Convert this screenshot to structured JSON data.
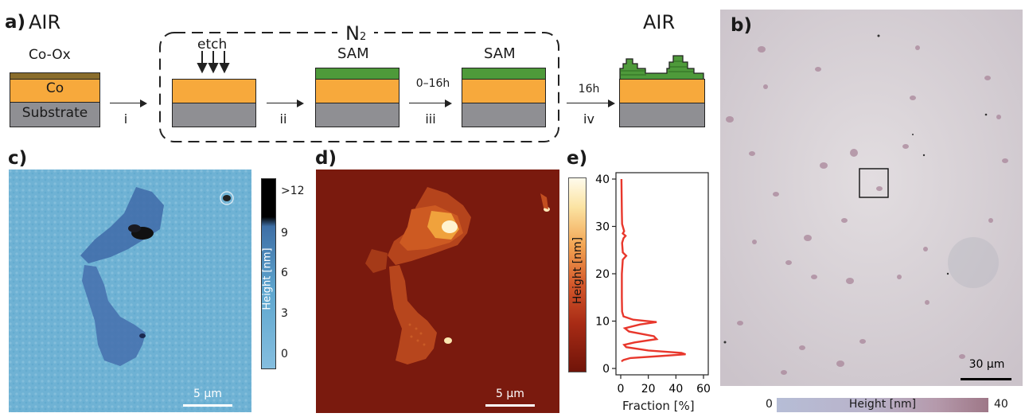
{
  "panel_a": {
    "label": "a)",
    "air_left": "AIR",
    "air_right": "AIR",
    "n2_label": "N",
    "n2_sub": "2",
    "layers_start": {
      "oxide": "Co-Ox",
      "co": "Co",
      "substrate": "Substrate"
    },
    "etch_label": "etch",
    "sam_label": "SAM",
    "steps": {
      "i": "i",
      "ii": "ii",
      "iii": "iii",
      "iii_time": "0–16h",
      "iv": "iv",
      "iv_time": "16h"
    },
    "colors": {
      "cobalt": "#f7a93c",
      "substrate": "#8f8f93",
      "oxide": "#8a6d2c",
      "sam": "#4e9a3a"
    }
  },
  "panel_b": {
    "label": "b)",
    "scale_label": "30 µm",
    "colorbar_min": "0",
    "colorbar_max": "40",
    "colorbar_label": "Height [nm]"
  },
  "panel_c": {
    "label": "c)",
    "scale_label": "5 µm",
    "colorbar_label": "Height [nm]",
    "colorbar_ticks": [
      ">12",
      "9",
      "6",
      "3",
      "0"
    ]
  },
  "panel_d": {
    "label": "d)",
    "scale_label": "5 µm"
  },
  "panel_e": {
    "label": "e)",
    "colorbar_label": "Height [nm]",
    "chart_data": {
      "type": "line",
      "xlabel": "Fraction [%]",
      "ylabel": "Height [nm]",
      "xlim": [
        0,
        60
      ],
      "ylim": [
        0,
        40
      ],
      "x_ticks": [
        "0",
        "20",
        "40",
        "60"
      ],
      "y_ticks": [
        "0",
        "10",
        "20",
        "30",
        "40"
      ],
      "series": [
        {
          "color": "#e8372c",
          "points": [
            [
              0.5,
              40
            ],
            [
              0.8,
              33
            ],
            [
              1,
              30.5
            ],
            [
              2.5,
              29
            ],
            [
              1.5,
              28.5
            ],
            [
              3.5,
              28
            ],
            [
              2,
              27.5
            ],
            [
              1,
              26.5
            ],
            [
              1.5,
              24.5
            ],
            [
              4,
              23.8
            ],
            [
              1.5,
              23
            ],
            [
              0.8,
              20
            ],
            [
              0.8,
              15
            ],
            [
              1,
              12
            ],
            [
              2,
              11
            ],
            [
              9,
              10.3
            ],
            [
              26,
              9.8
            ],
            [
              14,
              9.3
            ],
            [
              3,
              8.5
            ],
            [
              6,
              7.8
            ],
            [
              24,
              6.8
            ],
            [
              26,
              6.2
            ],
            [
              10,
              5.5
            ],
            [
              2.5,
              5
            ],
            [
              4,
              4.5
            ],
            [
              20,
              3.8
            ],
            [
              44,
              3.3
            ],
            [
              47,
              3
            ],
            [
              28,
              2.6
            ],
            [
              7,
              2.2
            ],
            [
              2,
              1.8
            ],
            [
              0.5,
              1.5
            ]
          ]
        }
      ]
    }
  }
}
